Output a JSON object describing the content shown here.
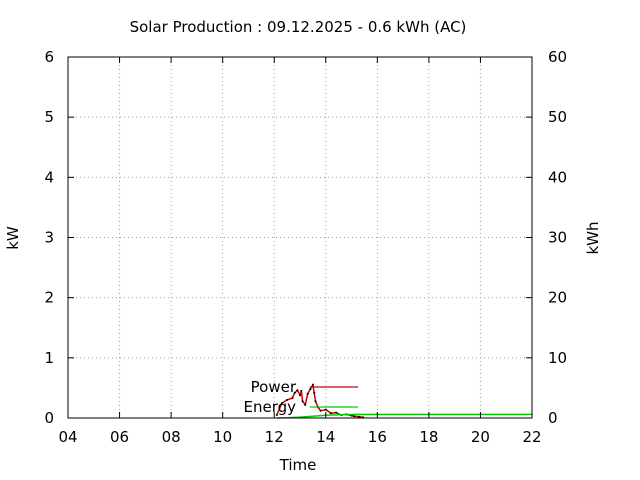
{
  "chart_data": {
    "type": "line",
    "title": "Solar Production : 09.12.2025 - 0.6 kWh (AC)",
    "xlabel": "Time",
    "ylabel": "kW",
    "y2label": "kWh",
    "xlim": [
      4,
      22
    ],
    "ylim": [
      0,
      6
    ],
    "y2lim": [
      0,
      60
    ],
    "x_ticks": [
      "04",
      "06",
      "08",
      "10",
      "12",
      "14",
      "16",
      "18",
      "20",
      "22"
    ],
    "y_ticks": [
      "0",
      "1",
      "2",
      "3",
      "4",
      "5",
      "6"
    ],
    "y2_ticks": [
      "0",
      "10",
      "20",
      "30",
      "40",
      "50",
      "60"
    ],
    "grid": true,
    "legend_position": "inside-bottom-center",
    "series": [
      {
        "name": "Power",
        "axis": "y",
        "color": "#cc0000",
        "x": [
          12.1,
          12.3,
          12.5,
          12.7,
          12.8,
          12.9,
          13.0,
          13.05,
          13.1,
          13.2,
          13.3,
          13.4,
          13.5,
          13.55,
          13.6,
          13.7,
          13.8,
          14.0,
          14.2,
          14.4,
          14.6,
          14.8,
          15.0,
          15.1,
          15.3,
          15.45
        ],
        "values": [
          0.05,
          0.25,
          0.3,
          0.33,
          0.42,
          0.46,
          0.38,
          0.45,
          0.28,
          0.22,
          0.4,
          0.48,
          0.55,
          0.42,
          0.28,
          0.18,
          0.12,
          0.14,
          0.08,
          0.09,
          0.05,
          0.06,
          0.04,
          0.03,
          0.02,
          0.01
        ]
      },
      {
        "name": "Energy",
        "axis": "y2",
        "color": "#00cc00",
        "x": [
          12.1,
          12.5,
          13.0,
          13.5,
          14.0,
          14.5,
          15.0,
          15.45,
          22
        ],
        "values": [
          0.0,
          0.05,
          0.15,
          0.3,
          0.45,
          0.53,
          0.58,
          0.6,
          0.6
        ]
      }
    ]
  }
}
